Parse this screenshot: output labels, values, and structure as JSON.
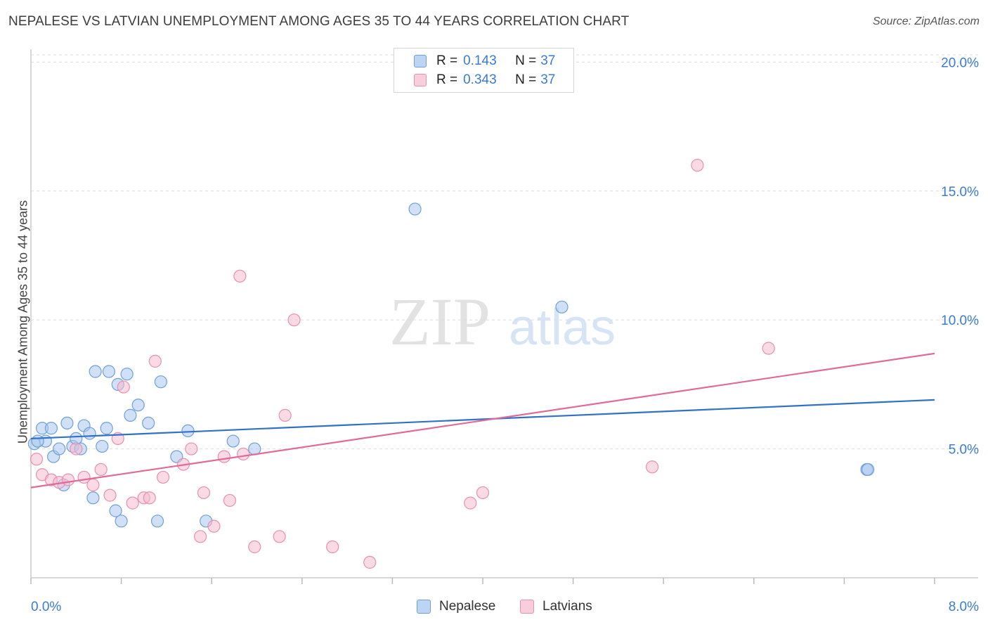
{
  "title": "NEPALESE VS LATVIAN UNEMPLOYMENT AMONG AGES 35 TO 44 YEARS CORRELATION CHART",
  "source": "Source: ZipAtlas.com",
  "watermark": {
    "zip": "ZIP",
    "atlas": "atlas"
  },
  "legend": {
    "rows": [
      {
        "r_label": "R =",
        "r_value": "0.143",
        "n_label": "N =",
        "n_value": "37"
      },
      {
        "r_label": "R =",
        "r_value": "0.343",
        "n_label": "N =",
        "n_value": "37"
      }
    ]
  },
  "bottom_legend": {
    "nepalese": "Nepalese",
    "latvians": "Latvians"
  },
  "colors": {
    "nepalese_fill": "#a9c8f0",
    "nepalese_stroke": "#6f9fd8",
    "nepalese_line": "#2f72c8",
    "latvians_fill": "#f6bcd0",
    "latvians_stroke": "#e98fb0",
    "latvians_line": "#e06b98",
    "tick_label": "#3a7bd5",
    "grid": "#dddddd"
  },
  "chart_data": {
    "type": "scatter",
    "title": "NEPALESE VS LATVIAN UNEMPLOYMENT AMONG AGES 35 TO 44 YEARS CORRELATION CHART",
    "xlabel": "",
    "ylabel": "Unemployment Among Ages 35 to 44 years",
    "xlim": [
      0,
      8
    ],
    "ylim": [
      0,
      20.5
    ],
    "x_tick_labels": [
      "0.0%",
      "8.0%"
    ],
    "y_ticks": [
      5,
      10,
      15,
      20
    ],
    "y_tick_labels": [
      "5.0%",
      "10.0%",
      "15.0%",
      "20.0%"
    ],
    "grid": true,
    "legend_position": "top-center",
    "series": [
      {
        "name": "Nepalese",
        "r": 0.143,
        "n": 37,
        "trend": {
          "x": [
            0,
            8
          ],
          "y": [
            5.4,
            6.9
          ]
        },
        "points": [
          [
            0.03,
            5.2
          ],
          [
            0.1,
            5.8
          ],
          [
            0.13,
            5.3
          ],
          [
            0.18,
            5.8
          ],
          [
            0.2,
            4.7
          ],
          [
            0.25,
            5.0
          ],
          [
            0.29,
            3.6
          ],
          [
            0.32,
            6.0
          ],
          [
            0.37,
            5.1
          ],
          [
            0.4,
            5.4
          ],
          [
            0.44,
            5.0
          ],
          [
            0.47,
            5.9
          ],
          [
            0.52,
            5.6
          ],
          [
            0.55,
            3.1
          ],
          [
            0.57,
            8.0
          ],
          [
            0.63,
            5.1
          ],
          [
            0.67,
            5.8
          ],
          [
            0.69,
            8.0
          ],
          [
            0.75,
            2.6
          ],
          [
            0.77,
            7.5
          ],
          [
            0.8,
            2.2
          ],
          [
            0.85,
            7.9
          ],
          [
            0.88,
            6.3
          ],
          [
            0.95,
            6.7
          ],
          [
            1.04,
            6.0
          ],
          [
            1.12,
            2.2
          ],
          [
            1.15,
            7.6
          ],
          [
            1.29,
            4.7
          ],
          [
            1.39,
            5.7
          ],
          [
            1.55,
            2.2
          ],
          [
            1.79,
            5.3
          ],
          [
            1.98,
            5.0
          ],
          [
            3.4,
            14.3
          ],
          [
            4.7,
            10.5
          ],
          [
            7.4,
            4.2
          ],
          [
            7.41,
            4.2
          ],
          [
            0.06,
            5.3
          ]
        ]
      },
      {
        "name": "Latvians",
        "r": 0.343,
        "n": 37,
        "trend": {
          "x": [
            0,
            8
          ],
          "y": [
            3.5,
            8.7
          ]
        },
        "points": [
          [
            0.05,
            4.6
          ],
          [
            0.1,
            4.0
          ],
          [
            0.18,
            3.8
          ],
          [
            0.25,
            3.7
          ],
          [
            0.33,
            3.8
          ],
          [
            0.4,
            5.0
          ],
          [
            0.47,
            3.9
          ],
          [
            0.55,
            3.6
          ],
          [
            0.62,
            4.2
          ],
          [
            0.7,
            3.2
          ],
          [
            0.77,
            5.4
          ],
          [
            0.82,
            7.4
          ],
          [
            0.9,
            2.9
          ],
          [
            1.0,
            3.1
          ],
          [
            1.05,
            3.1
          ],
          [
            1.1,
            8.4
          ],
          [
            1.17,
            3.9
          ],
          [
            1.35,
            4.4
          ],
          [
            1.42,
            5.0
          ],
          [
            1.5,
            1.6
          ],
          [
            1.53,
            3.3
          ],
          [
            1.62,
            2.0
          ],
          [
            1.71,
            4.7
          ],
          [
            1.76,
            3.0
          ],
          [
            1.85,
            11.7
          ],
          [
            1.88,
            4.8
          ],
          [
            1.98,
            1.2
          ],
          [
            2.2,
            1.6
          ],
          [
            2.25,
            6.3
          ],
          [
            2.33,
            10.0
          ],
          [
            2.67,
            1.2
          ],
          [
            3.0,
            0.6
          ],
          [
            3.89,
            2.9
          ],
          [
            4.0,
            3.3
          ],
          [
            5.5,
            4.3
          ],
          [
            5.9,
            16.0
          ],
          [
            6.53,
            8.9
          ]
        ]
      }
    ]
  }
}
